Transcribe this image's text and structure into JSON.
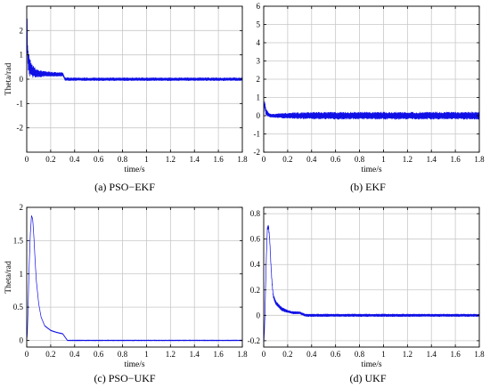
{
  "figure": {
    "colors": {
      "line": "#1010e6",
      "grid": "#c8c8c8",
      "axis": "#000000",
      "background": "#ffffff"
    }
  },
  "chart_data": [
    {
      "id": "a",
      "type": "line",
      "caption": "(a) PSO−EKF",
      "xlabel": "time/s",
      "ylabel": "Theta/rad",
      "xlim": [
        0,
        1.8
      ],
      "ylim": [
        -3,
        3
      ],
      "xticks": [
        0,
        0.2,
        0.4,
        0.6,
        0.8,
        1,
        1.2,
        1.4,
        1.6,
        1.8
      ],
      "xtick_labels": [
        "0",
        "0.2",
        "0.4",
        "0.6",
        "0.8",
        "1",
        "1.2",
        "1.4",
        "1.6",
        "1.8"
      ],
      "yticks": [
        -2,
        -1,
        0,
        1,
        2
      ],
      "ytick_labels": [
        "-2",
        "-1",
        "0",
        "1",
        "2"
      ],
      "grid": true,
      "series": [
        {
          "x": [
            0,
            0.003,
            0.006,
            0.01,
            0.015,
            0.02,
            0.03,
            0.04,
            0.05,
            0.07,
            0.1,
            0.15,
            0.2,
            0.25,
            0.3,
            0.31,
            0.32,
            0.4,
            0.6,
            0.8,
            1.0,
            1.2,
            1.4,
            1.6,
            1.8
          ],
          "center": [
            0,
            2.6,
            1.2,
            0.9,
            0.7,
            0.55,
            0.45,
            0.38,
            0.32,
            0.27,
            0.23,
            0.22,
            0.21,
            0.2,
            0.2,
            0.1,
            0,
            0,
            0,
            0,
            0,
            0,
            0,
            0,
            0
          ],
          "noise_band": [
            0,
            0.4,
            0.9,
            1.0,
            0.9,
            0.8,
            0.7,
            0.6,
            0.5,
            0.4,
            0.3,
            0.22,
            0.18,
            0.16,
            0.15,
            0.12,
            0.12,
            0.12,
            0.12,
            0.12,
            0.12,
            0.12,
            0.12,
            0.12,
            0.12
          ]
        }
      ]
    },
    {
      "id": "b",
      "type": "line",
      "caption": "(b) EKF",
      "xlabel": "time/s",
      "ylabel": "",
      "xlim": [
        0,
        1.8
      ],
      "ylim": [
        -2,
        6
      ],
      "xticks": [
        0,
        0.2,
        0.4,
        0.6,
        0.8,
        1,
        1.2,
        1.4,
        1.6,
        1.8
      ],
      "xtick_labels": [
        "0",
        "0.2",
        "0.4",
        "0.6",
        "0.8",
        "1",
        "1.2",
        "1.4",
        "1.6",
        "1.8"
      ],
      "yticks": [
        -2,
        -1,
        0,
        1,
        2,
        3,
        4,
        5,
        6
      ],
      "ytick_labels": [
        "-2",
        "-1",
        "0",
        "1",
        "2",
        "3",
        "4",
        "5",
        "6"
      ],
      "grid": true,
      "series": [
        {
          "x": [
            0,
            0.005,
            0.01,
            0.02,
            0.04,
            0.07,
            0.1,
            0.15,
            0.2,
            0.3,
            0.4,
            0.6,
            0.8,
            1.0,
            1.2,
            1.4,
            1.6,
            1.8
          ],
          "center": [
            0,
            0.7,
            0.5,
            0.2,
            0.05,
            0,
            0,
            0,
            0,
            0,
            0,
            0,
            0,
            0,
            0,
            0,
            0,
            0
          ],
          "noise_band": [
            0,
            0.3,
            0.45,
            0.35,
            0.2,
            0.18,
            0.2,
            0.25,
            0.3,
            0.35,
            0.38,
            0.4,
            0.4,
            0.4,
            0.4,
            0.4,
            0.4,
            0.4
          ]
        }
      ]
    },
    {
      "id": "c",
      "type": "line",
      "caption": "(c) PSO−UKF",
      "xlabel": "time/s",
      "ylabel": "Theta/rad",
      "xlim": [
        0,
        1.8
      ],
      "ylim": [
        -0.1,
        2.0
      ],
      "xticks": [
        0,
        0.2,
        0.4,
        0.6,
        0.8,
        1,
        1.2,
        1.4,
        1.6,
        1.8
      ],
      "xtick_labels": [
        "0",
        "0.2",
        "0.4",
        "0.6",
        "0.8",
        "1",
        "1.2",
        "1.4",
        "1.6",
        "1.8"
      ],
      "yticks": [
        0,
        0.5,
        1,
        1.5,
        2
      ],
      "ytick_labels": [
        "0",
        "0.5",
        "1",
        "1.5",
        "2"
      ],
      "grid": true,
      "series": [
        {
          "x": [
            0,
            0.005,
            0.01,
            0.02,
            0.03,
            0.04,
            0.05,
            0.06,
            0.07,
            0.08,
            0.1,
            0.12,
            0.15,
            0.2,
            0.25,
            0.3,
            0.32,
            0.34,
            0.4,
            0.6,
            0.8,
            1.0,
            1.2,
            1.4,
            1.6,
            1.8
          ],
          "center": [
            0,
            0.1,
            0.4,
            1.1,
            1.6,
            1.88,
            1.82,
            1.55,
            1.2,
            0.9,
            0.55,
            0.35,
            0.22,
            0.15,
            0.12,
            0.1,
            0.05,
            0,
            0,
            0,
            0,
            0,
            0,
            0,
            0,
            0
          ],
          "noise_band": [
            0,
            0.01,
            0.01,
            0.01,
            0.01,
            0.01,
            0.01,
            0.01,
            0.01,
            0.01,
            0.01,
            0.01,
            0.01,
            0.01,
            0.01,
            0.01,
            0.01,
            0.012,
            0.012,
            0.012,
            0.012,
            0.012,
            0.012,
            0.012,
            0.012,
            0.012
          ]
        }
      ]
    },
    {
      "id": "d",
      "type": "line",
      "caption": "(d) UKF",
      "xlabel": "time/s",
      "ylabel": "",
      "xlim": [
        0,
        1.8
      ],
      "ylim": [
        -0.25,
        0.85
      ],
      "xticks": [
        0,
        0.2,
        0.4,
        0.6,
        0.8,
        1,
        1.2,
        1.4,
        1.6,
        1.8
      ],
      "xtick_labels": [
        "0",
        "0.2",
        "0.4",
        "0.6",
        "0.8",
        "1",
        "1.2",
        "1.4",
        "1.6",
        "1.8"
      ],
      "yticks": [
        -0.2,
        0,
        0.2,
        0.4,
        0.6,
        0.8
      ],
      "ytick_labels": [
        "-0.2",
        "0",
        "0.2",
        "0.4",
        "0.6",
        "0.8"
      ],
      "grid": true,
      "series": [
        {
          "x": [
            0,
            0.005,
            0.01,
            0.02,
            0.03,
            0.04,
            0.05,
            0.06,
            0.07,
            0.08,
            0.1,
            0.12,
            0.15,
            0.2,
            0.25,
            0.3,
            0.35,
            0.4,
            0.6,
            0.8,
            1.0,
            1.2,
            1.4,
            1.6,
            1.8
          ],
          "center": [
            -0.22,
            -0.15,
            0.0,
            0.4,
            0.68,
            0.7,
            0.6,
            0.4,
            0.25,
            0.15,
            0.1,
            0.08,
            0.05,
            0.03,
            0.02,
            0.02,
            0,
            0,
            0,
            0,
            0,
            0,
            0,
            0,
            0
          ],
          "noise_band": [
            0.01,
            0.02,
            0.03,
            0.03,
            0.03,
            0.03,
            0.03,
            0.03,
            0.03,
            0.03,
            0.03,
            0.03,
            0.03,
            0.02,
            0.02,
            0.02,
            0.02,
            0.02,
            0.02,
            0.02,
            0.02,
            0.02,
            0.02,
            0.02,
            0.02
          ]
        }
      ]
    }
  ]
}
